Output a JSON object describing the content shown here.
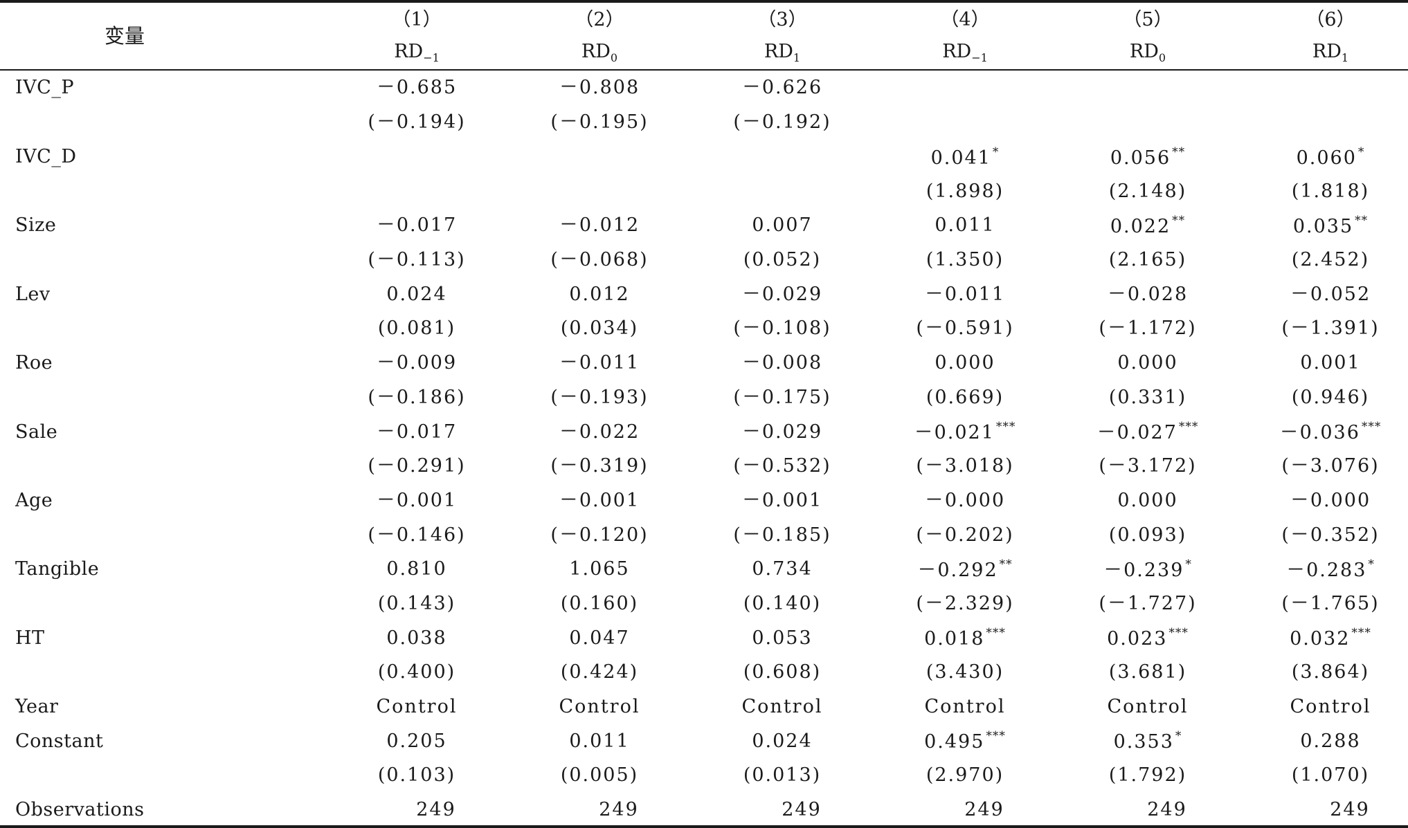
{
  "table": {
    "variable_header": "变量",
    "columns": [
      {
        "number": "（1）",
        "dep": "RD",
        "sub": "−1"
      },
      {
        "number": "（2）",
        "dep": "RD",
        "sub": "0"
      },
      {
        "number": "（3）",
        "dep": "RD",
        "sub": "1"
      },
      {
        "number": "（4）",
        "dep": "RD",
        "sub": "−1"
      },
      {
        "number": "（5）",
        "dep": "RD",
        "sub": "0"
      },
      {
        "number": "（6）",
        "dep": "RD",
        "sub": "1"
      }
    ],
    "rows": [
      {
        "var": "IVC_P",
        "cells": [
          {
            "v": "－0.685"
          },
          {
            "v": "－0.808"
          },
          {
            "v": "－0.626"
          },
          {
            "v": ""
          },
          {
            "v": ""
          },
          {
            "v": ""
          }
        ]
      },
      {
        "var": "",
        "cells": [
          {
            "v": "(－0.194)"
          },
          {
            "v": "(－0.195)"
          },
          {
            "v": "(－0.192)"
          },
          {
            "v": ""
          },
          {
            "v": ""
          },
          {
            "v": ""
          }
        ]
      },
      {
        "var": "IVC_D",
        "cells": [
          {
            "v": ""
          },
          {
            "v": ""
          },
          {
            "v": ""
          },
          {
            "v": "0.041",
            "s": "*"
          },
          {
            "v": "0.056",
            "s": "**"
          },
          {
            "v": "0.060",
            "s": "*"
          }
        ]
      },
      {
        "var": "",
        "cells": [
          {
            "v": ""
          },
          {
            "v": ""
          },
          {
            "v": ""
          },
          {
            "v": "(1.898)"
          },
          {
            "v": "(2.148)"
          },
          {
            "v": "(1.818)"
          }
        ]
      },
      {
        "var": "Size",
        "cells": [
          {
            "v": "－0.017"
          },
          {
            "v": "－0.012"
          },
          {
            "v": "0.007"
          },
          {
            "v": "0.011"
          },
          {
            "v": "0.022",
            "s": "**"
          },
          {
            "v": "0.035",
            "s": "**"
          }
        ]
      },
      {
        "var": "",
        "cells": [
          {
            "v": "(－0.113)"
          },
          {
            "v": "(－0.068)"
          },
          {
            "v": "(0.052)"
          },
          {
            "v": "(1.350)"
          },
          {
            "v": "(2.165)"
          },
          {
            "v": "(2.452)"
          }
        ]
      },
      {
        "var": "Lev",
        "cells": [
          {
            "v": "0.024"
          },
          {
            "v": "0.012"
          },
          {
            "v": "－0.029"
          },
          {
            "v": "－0.011"
          },
          {
            "v": "－0.028"
          },
          {
            "v": "－0.052"
          }
        ]
      },
      {
        "var": "",
        "cells": [
          {
            "v": "(0.081)"
          },
          {
            "v": "(0.034)"
          },
          {
            "v": "(－0.108)"
          },
          {
            "v": "(－0.591)"
          },
          {
            "v": "(－1.172)"
          },
          {
            "v": "(－1.391)"
          }
        ]
      },
      {
        "var": "Roe",
        "cells": [
          {
            "v": "－0.009"
          },
          {
            "v": "－0.011"
          },
          {
            "v": "－0.008"
          },
          {
            "v": "0.000"
          },
          {
            "v": "0.000"
          },
          {
            "v": "0.001"
          }
        ]
      },
      {
        "var": "",
        "cells": [
          {
            "v": "(－0.186)"
          },
          {
            "v": "(－0.193)"
          },
          {
            "v": "(－0.175)"
          },
          {
            "v": "(0.669)"
          },
          {
            "v": "(0.331)"
          },
          {
            "v": "(0.946)"
          }
        ]
      },
      {
        "var": "Sale",
        "cells": [
          {
            "v": "－0.017"
          },
          {
            "v": "－0.022"
          },
          {
            "v": "－0.029"
          },
          {
            "v": "－0.021",
            "s": "***"
          },
          {
            "v": "－0.027",
            "s": "***"
          },
          {
            "v": "－0.036",
            "s": "***"
          }
        ]
      },
      {
        "var": "",
        "cells": [
          {
            "v": "(－0.291)"
          },
          {
            "v": "(－0.319)"
          },
          {
            "v": "(－0.532)"
          },
          {
            "v": "(－3.018)"
          },
          {
            "v": "(－3.172)"
          },
          {
            "v": "(－3.076)"
          }
        ]
      },
      {
        "var": "Age",
        "cells": [
          {
            "v": "－0.001"
          },
          {
            "v": "－0.001"
          },
          {
            "v": "－0.001"
          },
          {
            "v": "－0.000"
          },
          {
            "v": "0.000"
          },
          {
            "v": "－0.000"
          }
        ]
      },
      {
        "var": "",
        "cells": [
          {
            "v": "(－0.146)"
          },
          {
            "v": "(－0.120)"
          },
          {
            "v": "(－0.185)"
          },
          {
            "v": "(－0.202)"
          },
          {
            "v": "(0.093)"
          },
          {
            "v": "(－0.352)"
          }
        ]
      },
      {
        "var": "Tangible",
        "cells": [
          {
            "v": "0.810"
          },
          {
            "v": "1.065"
          },
          {
            "v": "0.734"
          },
          {
            "v": "－0.292",
            "s": "**"
          },
          {
            "v": "－0.239",
            "s": "*"
          },
          {
            "v": "－0.283",
            "s": "*"
          }
        ]
      },
      {
        "var": "",
        "cells": [
          {
            "v": "(0.143)"
          },
          {
            "v": "(0.160)"
          },
          {
            "v": "(0.140)"
          },
          {
            "v": "(－2.329)"
          },
          {
            "v": "(－1.727)"
          },
          {
            "v": "(－1.765)"
          }
        ]
      },
      {
        "var": "HT",
        "cells": [
          {
            "v": "0.038"
          },
          {
            "v": "0.047"
          },
          {
            "v": "0.053"
          },
          {
            "v": "0.018",
            "s": "***"
          },
          {
            "v": "0.023",
            "s": "***"
          },
          {
            "v": "0.032",
            "s": "***"
          }
        ]
      },
      {
        "var": "",
        "cells": [
          {
            "v": "(0.400)"
          },
          {
            "v": "(0.424)"
          },
          {
            "v": "(0.608)"
          },
          {
            "v": "(3.430)"
          },
          {
            "v": "(3.681)"
          },
          {
            "v": "(3.864)"
          }
        ]
      },
      {
        "var": "Year",
        "cells": [
          {
            "v": "Control"
          },
          {
            "v": "Control"
          },
          {
            "v": "Control"
          },
          {
            "v": "Control"
          },
          {
            "v": "Control"
          },
          {
            "v": "Control"
          }
        ]
      },
      {
        "var": "Constant",
        "cells": [
          {
            "v": "0.205"
          },
          {
            "v": "0.011"
          },
          {
            "v": "0.024"
          },
          {
            "v": "0.495",
            "s": "***"
          },
          {
            "v": "0.353",
            "s": "*"
          },
          {
            "v": "0.288"
          }
        ]
      },
      {
        "var": "",
        "cells": [
          {
            "v": "(0.103)"
          },
          {
            "v": "(0.005)"
          },
          {
            "v": "(0.013)"
          },
          {
            "v": "(2.970)"
          },
          {
            "v": "(1.792)"
          },
          {
            "v": "(1.070)"
          }
        ]
      },
      {
        "var": "Observations",
        "cells": [
          {
            "v": "249"
          },
          {
            "v": "249"
          },
          {
            "v": "249"
          },
          {
            "v": "249"
          },
          {
            "v": "249"
          },
          {
            "v": "249"
          }
        ]
      }
    ]
  }
}
